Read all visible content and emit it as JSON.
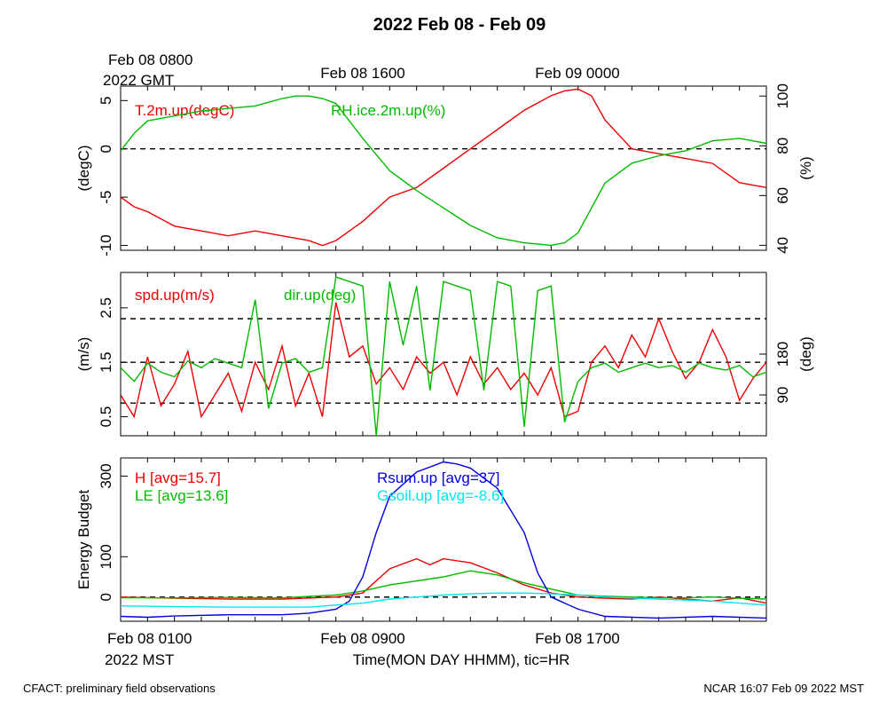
{
  "title": "2022 Feb 08 - Feb 09",
  "top_axis": {
    "start_label_1": "Feb 08 0800",
    "start_label_2": "2022 GMT",
    "tick_labels": [
      "Feb 08 1600",
      "Feb 09 0000"
    ]
  },
  "bottom_axis": {
    "start_label_1": "Feb 08 0100",
    "start_label_2": "2022 MST",
    "tick_labels": [
      "Feb 08 0900",
      "Feb 08 1700"
    ],
    "xlabel": "Time(MON DAY HHMM), tic=HR"
  },
  "footer": {
    "left": "CFACT: preliminary field observations",
    "right": "NCAR 16:07 Feb 09 2022 MST"
  },
  "colors": {
    "red": "#ee0000",
    "green": "#00bb00",
    "blue": "#0000dd",
    "cyan": "#00e5ee",
    "black": "#000000"
  },
  "chart_data": [
    {
      "type": "line",
      "x_unit": "hours since Feb 08 0100 MST",
      "xlim": [
        0,
        24
      ],
      "left_axis": {
        "label": "(degC)",
        "ylim": [
          -10.5,
          6.5
        ],
        "ticks": [
          5,
          0,
          -5,
          -10
        ],
        "dashed_lines": [
          0
        ]
      },
      "right_axis": {
        "label": "(%)",
        "ylim": [
          38,
          104
        ],
        "ticks": [
          100,
          80,
          60,
          40
        ]
      },
      "series": [
        {
          "name": "T.2m.up(degC)",
          "axis": "left",
          "color": "red",
          "x": [
            0,
            0.5,
            1,
            2,
            3,
            4,
            5,
            6,
            7,
            7.5,
            8,
            9,
            10,
            11,
            12,
            13,
            14,
            15,
            16,
            16.5,
            17,
            17.5,
            18,
            19,
            20,
            21,
            22,
            23,
            24
          ],
          "y": [
            -5,
            -6,
            -6.5,
            -8,
            -8.5,
            -9,
            -8.5,
            -9,
            -9.5,
            -10,
            -9.5,
            -7.5,
            -5,
            -4,
            -2,
            0,
            2,
            4,
            5.5,
            6,
            6.2,
            5.5,
            3,
            0,
            -0.5,
            -1,
            -1.5,
            -3.5,
            -4
          ]
        },
        {
          "name": "RH.ice.2m.up(%)",
          "axis": "right",
          "color": "green",
          "x": [
            0,
            0.5,
            1,
            2,
            3,
            4,
            5,
            6,
            6.5,
            7,
            7.5,
            8,
            8.5,
            9,
            10,
            11,
            12,
            13,
            14,
            15,
            16,
            16.5,
            17,
            18,
            19,
            20,
            21,
            22,
            23,
            24
          ],
          "y": [
            78,
            85,
            90,
            92,
            94,
            95,
            96,
            99,
            100,
            100,
            99,
            97,
            90,
            83,
            70,
            62,
            55,
            48,
            43,
            41,
            40,
            41,
            45,
            65,
            73,
            76,
            78,
            82,
            83,
            81
          ]
        }
      ]
    },
    {
      "type": "line",
      "x_unit": "hours since Feb 08 0100 MST",
      "xlim": [
        0,
        24
      ],
      "left_axis": {
        "label": "(m/s)",
        "ylim": [
          0.15,
          3.15
        ],
        "ticks": [
          2.5,
          1.5,
          0.5
        ],
        "dashed_lines": [
          2.3,
          1.5,
          0.75
        ]
      },
      "right_axis": {
        "label": "(deg)",
        "ylim": [
          0,
          360
        ],
        "ticks": [
          180,
          90
        ]
      },
      "series": [
        {
          "name": "spd.up(m/s)",
          "axis": "left",
          "color": "red",
          "x": [
            0,
            0.5,
            1,
            1.5,
            2,
            2.5,
            3,
            3.5,
            4,
            4.5,
            5,
            5.5,
            6,
            6.5,
            7,
            7.5,
            8,
            8.5,
            9,
            9.5,
            10,
            10.5,
            11,
            11.5,
            12,
            12.5,
            13,
            13.5,
            14,
            14.5,
            15,
            15.5,
            16,
            16.5,
            17,
            17.5,
            18,
            18.5,
            19,
            19.5,
            20,
            20.5,
            21,
            21.5,
            22,
            22.5,
            23,
            23.5,
            24
          ],
          "y": [
            0.9,
            0.5,
            1.6,
            0.7,
            1.1,
            1.7,
            0.5,
            0.9,
            1.3,
            0.6,
            1.5,
            1.0,
            1.8,
            0.7,
            1.3,
            0.5,
            2.6,
            1.6,
            1.8,
            1.1,
            1.4,
            1.0,
            1.6,
            1.3,
            1.5,
            0.9,
            1.6,
            1.1,
            1.4,
            1.0,
            1.3,
            0.9,
            1.4,
            0.5,
            0.6,
            1.5,
            1.8,
            1.4,
            2.0,
            1.6,
            2.3,
            1.7,
            1.2,
            1.5,
            2.1,
            1.6,
            0.8,
            1.2,
            1.5
          ]
        },
        {
          "name": "dir.up(deg)",
          "axis": "right",
          "color": "green",
          "x": [
            0,
            0.5,
            1,
            1.5,
            2,
            2.5,
            3,
            3.5,
            4,
            4.5,
            5,
            5.5,
            6,
            6.5,
            7,
            7.5,
            8,
            8.5,
            9,
            9.5,
            10,
            10.5,
            11,
            11.5,
            12,
            12.5,
            13,
            13.5,
            14,
            14.5,
            15,
            15.5,
            16,
            16.5,
            17,
            17.5,
            18,
            18.5,
            19,
            19.5,
            20,
            20.5,
            21,
            21.5,
            22,
            22.5,
            23,
            23.5,
            24
          ],
          "y": [
            150,
            120,
            160,
            140,
            130,
            165,
            150,
            170,
            160,
            150,
            300,
            60,
            160,
            170,
            140,
            150,
            350,
            340,
            330,
            0,
            340,
            200,
            330,
            100,
            340,
            330,
            320,
            100,
            340,
            330,
            20,
            320,
            330,
            30,
            120,
            150,
            160,
            140,
            150,
            160,
            150,
            155,
            140,
            160,
            150,
            145,
            155,
            130,
            140
          ]
        }
      ]
    },
    {
      "type": "line",
      "x_unit": "hours since Feb 08 0100 MST",
      "xlim": [
        0,
        24
      ],
      "left_axis": {
        "label": "Energy Budget",
        "ylim": [
          -60,
          345
        ],
        "ticks": [
          300,
          100,
          0
        ],
        "dashed_lines": [
          0
        ]
      },
      "series": [
        {
          "name": "H [avg=15.7]",
          "color": "red",
          "x": [
            0,
            2,
            4,
            6,
            8,
            9,
            10,
            11,
            11.5,
            12,
            13,
            14,
            15,
            16,
            17,
            18,
            19,
            20,
            21,
            22,
            23,
            24
          ],
          "y": [
            0,
            -3,
            -5,
            -5,
            0,
            10,
            70,
            95,
            80,
            95,
            85,
            60,
            30,
            10,
            0,
            -3,
            -5,
            0,
            -5,
            -10,
            -2,
            -15
          ]
        },
        {
          "name": "LE [avg=13.6]",
          "color": "green",
          "x": [
            0,
            2,
            4,
            6,
            8,
            9,
            10,
            11,
            12,
            13,
            14,
            15,
            16,
            17,
            18,
            19,
            20,
            21,
            22,
            23,
            24
          ],
          "y": [
            -2,
            -2,
            -1,
            -2,
            5,
            15,
            30,
            40,
            50,
            65,
            55,
            35,
            20,
            5,
            2,
            0,
            -2,
            -2,
            0,
            -3,
            -5
          ]
        },
        {
          "name": "Rsum.up [avg=37]",
          "color": "blue",
          "x": [
            0,
            1,
            2,
            4,
            6,
            7,
            8,
            8.5,
            9,
            9.5,
            10,
            11,
            12,
            12.5,
            13,
            14,
            15,
            15.5,
            16,
            17,
            18,
            20,
            22,
            24
          ],
          "y": [
            -48,
            -50,
            -47,
            -44,
            -44,
            -40,
            -30,
            -10,
            50,
            160,
            250,
            310,
            335,
            330,
            320,
            270,
            160,
            60,
            0,
            -30,
            -48,
            -52,
            -48,
            -52
          ]
        },
        {
          "name": "Gsoil.up [avg=-8.6]",
          "color": "cyan",
          "x": [
            0,
            2,
            4,
            6,
            7,
            8,
            9,
            10,
            11,
            12,
            13,
            14,
            15,
            16,
            17,
            18,
            20,
            22,
            24
          ],
          "y": [
            -22,
            -24,
            -25,
            -25,
            -25,
            -20,
            -15,
            -5,
            0,
            5,
            8,
            10,
            10,
            8,
            5,
            0,
            -5,
            -10,
            -20
          ]
        }
      ]
    }
  ]
}
